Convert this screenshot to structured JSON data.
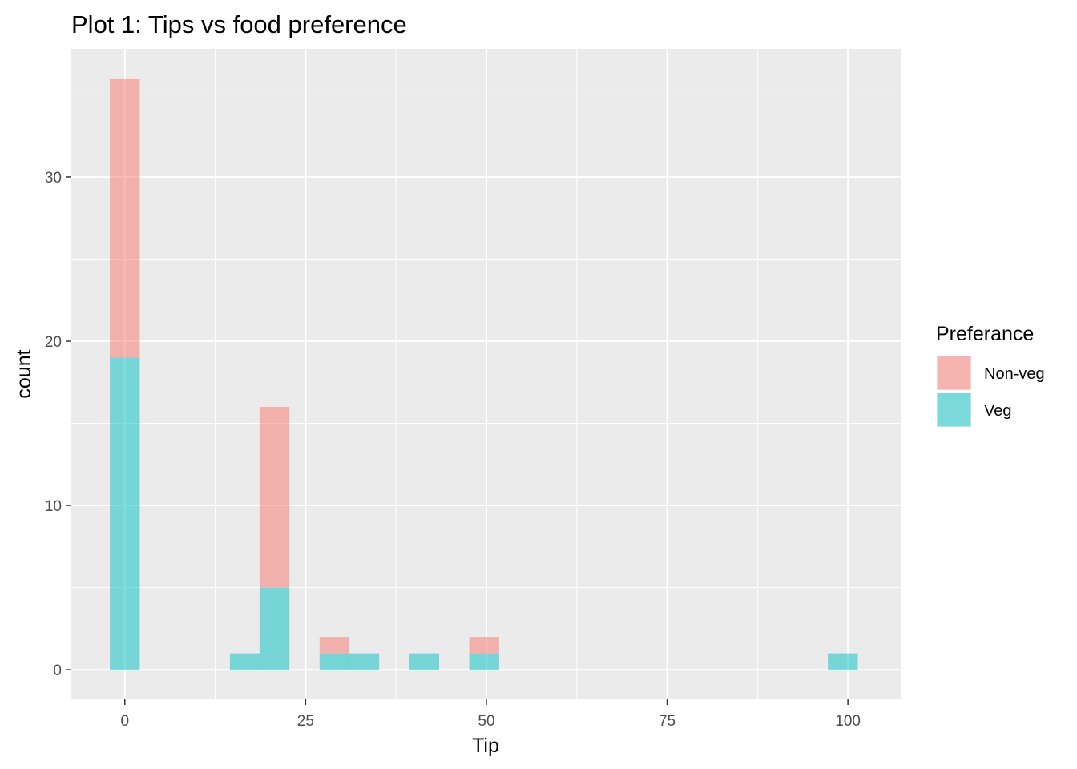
{
  "chart_data": {
    "type": "bar",
    "title": "Plot 1: Tips vs food preference",
    "xlabel": "Tip",
    "ylabel": "count",
    "xlim": [
      -7.4,
      107.3
    ],
    "ylim": [
      -1.8,
      37.8
    ],
    "x_ticks": [
      0,
      25,
      50,
      75,
      100
    ],
    "x_tick_labels": [
      "0",
      "25",
      "50",
      "75",
      "100"
    ],
    "y_ticks": [
      0,
      10,
      20,
      30
    ],
    "y_tick_labels": [
      "0",
      "10",
      "20",
      "30"
    ],
    "grid": true,
    "legend": {
      "title": "Preferance",
      "placement": "right",
      "entries": [
        {
          "name": "Non-veg",
          "color": "#F8766D"
        },
        {
          "name": "Veg",
          "color": "#00BFC4"
        }
      ]
    },
    "bin_width": 4.14,
    "stacked": true,
    "bins": [
      {
        "x": 0,
        "veg": 19,
        "nonveg": 17
      },
      {
        "x": 16.6,
        "veg": 1,
        "nonveg": 0
      },
      {
        "x": 20.7,
        "veg": 5,
        "nonveg": 11
      },
      {
        "x": 29.0,
        "veg": 1,
        "nonveg": 1
      },
      {
        "x": 33.1,
        "veg": 1,
        "nonveg": 0
      },
      {
        "x": 41.4,
        "veg": 1,
        "nonveg": 0
      },
      {
        "x": 49.7,
        "veg": 1,
        "nonveg": 1
      },
      {
        "x": 99.3,
        "veg": 1,
        "nonveg": 0
      }
    ],
    "colors": {
      "panel_bg": "#EBEBEB",
      "grid": "#FFFFFF",
      "nonveg_fill": "#F8766D",
      "veg_fill": "#00BFC4",
      "fill_opacity": 0.5
    }
  }
}
